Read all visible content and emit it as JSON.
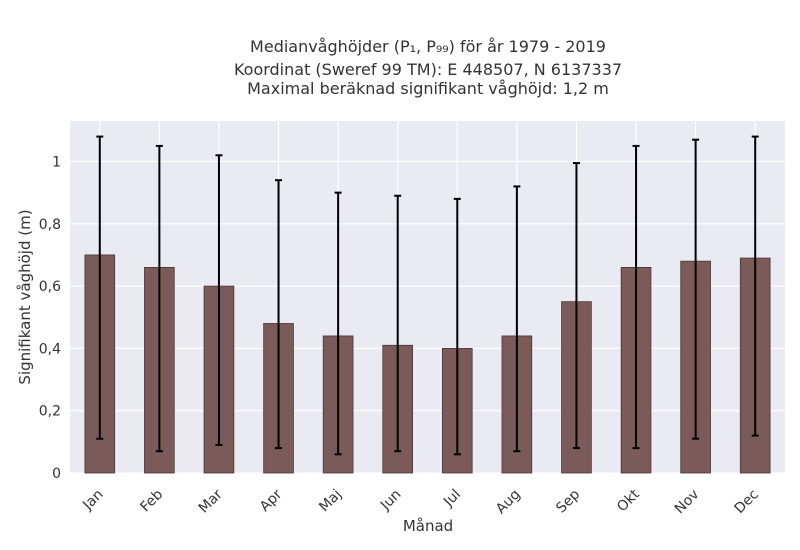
{
  "chart_data": {
    "type": "bar",
    "title_lines": [
      "Medianvåghöjder (P₁, P₉₉) för år 1979 - 2019",
      "Koordinat (Sweref 99 TM): E 448507, N 6137337",
      "Maximal beräknad signifikant våghöjd: 1,2 m"
    ],
    "xlabel": "Månad",
    "ylabel": "Signifikant våghöjd (m)",
    "categories": [
      "Jan",
      "Feb",
      "Mar",
      "Apr",
      "Maj",
      "Jun",
      "Jul",
      "Aug",
      "Sep",
      "Okt",
      "Nov",
      "Dec"
    ],
    "values": [
      0.7,
      0.66,
      0.6,
      0.48,
      0.44,
      0.41,
      0.4,
      0.44,
      0.55,
      0.66,
      0.68,
      0.69
    ],
    "lower": [
      0.11,
      0.07,
      0.09,
      0.08,
      0.06,
      0.07,
      0.06,
      0.07,
      0.08,
      0.08,
      0.11,
      0.12
    ],
    "upper": [
      1.08,
      1.05,
      1.02,
      0.94,
      0.9,
      0.89,
      0.88,
      0.92,
      0.995,
      1.05,
      1.07,
      1.08
    ],
    "ylim": [
      0,
      1.13
    ],
    "yticks": [
      0,
      0.2,
      0.4,
      0.6,
      0.8,
      1
    ],
    "ytick_labels": [
      "0",
      "0,2",
      "0,4",
      "0,6",
      "0,8",
      "1"
    ],
    "grid": true,
    "colors": {
      "bar": "#7b5a5a",
      "bar_edge": "#4a3535",
      "plot_bg": "#eaeaf2",
      "grid": "#ffffff",
      "errorbar": "#000000"
    }
  }
}
